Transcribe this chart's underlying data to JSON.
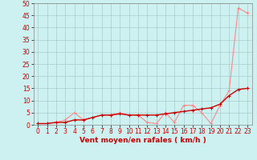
{
  "background_color": "#cdf0f0",
  "grid_color": "#aacccc",
  "xlabel": "Vent moyen/en rafales ( km/h )",
  "xlabel_color": "#cc0000",
  "ylabel_color": "#cc0000",
  "xlim": [
    -0.5,
    23.5
  ],
  "ylim": [
    0,
    50
  ],
  "yticks": [
    0,
    5,
    10,
    15,
    20,
    25,
    30,
    35,
    40,
    45,
    50
  ],
  "xticks": [
    0,
    1,
    2,
    3,
    4,
    5,
    6,
    7,
    8,
    9,
    10,
    11,
    12,
    13,
    14,
    15,
    16,
    17,
    18,
    19,
    20,
    21,
    22,
    23
  ],
  "line_rafales_x": [
    0,
    1,
    2,
    3,
    4,
    5,
    6,
    7,
    8,
    9,
    10,
    11,
    12,
    13,
    14,
    15,
    16,
    17,
    18,
    19,
    20,
    21,
    22,
    23
  ],
  "line_rafales_y": [
    0.5,
    0.5,
    1,
    2,
    5,
    2,
    3,
    4,
    4,
    5,
    4,
    4,
    1,
    0.5,
    5,
    1,
    8,
    8,
    5,
    0.5,
    8,
    14,
    48,
    46
  ],
  "line_rafales_color": "#ff8888",
  "line_moyen_x": [
    0,
    1,
    2,
    3,
    4,
    5,
    6,
    7,
    8,
    9,
    10,
    11,
    12,
    13,
    14,
    15,
    16,
    17,
    18,
    19,
    20,
    21,
    22,
    23
  ],
  "line_moyen_y": [
    0.5,
    0.5,
    1,
    1,
    2,
    2,
    3,
    4,
    4,
    4.5,
    4,
    4,
    4,
    4,
    4.5,
    5,
    5.5,
    6,
    6.5,
    7,
    8.5,
    12,
    14.5,
    15
  ],
  "line_moyen_color": "#cc0000",
  "tick_fontsize": 5.5,
  "xlabel_fontsize": 6.5
}
